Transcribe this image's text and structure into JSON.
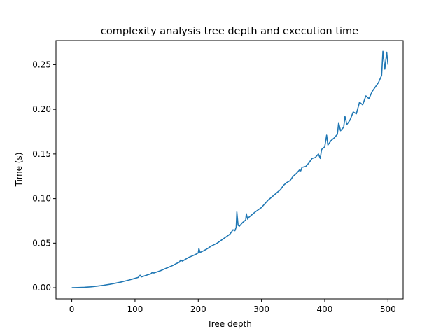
{
  "chart_data": {
    "type": "line",
    "title": "complexity analysis tree depth and execution time",
    "xlabel": "Tree depth",
    "ylabel": "Time (s)",
    "xlim": [
      -25,
      524
    ],
    "ylim": [
      -0.0125,
      0.277
    ],
    "xticks": [
      0,
      100,
      200,
      300,
      400,
      500
    ],
    "yticks": [
      0.0,
      0.05,
      0.1,
      0.15,
      0.2,
      0.25
    ],
    "xtick_labels": [
      "0",
      "100",
      "200",
      "300",
      "400",
      "500"
    ],
    "ytick_labels": [
      "0.00",
      "0.05",
      "0.10",
      "0.15",
      "0.20",
      "0.25"
    ],
    "grid": false,
    "legend": "none",
    "series": [
      {
        "color": "#1f77b4",
        "x": [
          0,
          10,
          20,
          30,
          40,
          50,
          60,
          70,
          80,
          90,
          100,
          105,
          108,
          110,
          112,
          120,
          125,
          127,
          130,
          140,
          150,
          155,
          160,
          165,
          170,
          172,
          175,
          180,
          185,
          190,
          195,
          200,
          201,
          203,
          210,
          215,
          220,
          230,
          240,
          245,
          250,
          255,
          258,
          260,
          261,
          263,
          265,
          270,
          275,
          276,
          278,
          280,
          290,
          300,
          305,
          310,
          315,
          320,
          330,
          335,
          340,
          345,
          350,
          355,
          360,
          362,
          364,
          370,
          375,
          380,
          385,
          390,
          393,
          395,
          400,
          403,
          405,
          410,
          415,
          420,
          422,
          425,
          430,
          432,
          435,
          440,
          445,
          450,
          455,
          460,
          465,
          470,
          475,
          480,
          485,
          490,
          492,
          495,
          498,
          500
        ],
        "y": [
          0.0,
          0.0002,
          0.0005,
          0.001,
          0.0018,
          0.0027,
          0.0038,
          0.0052,
          0.0067,
          0.0085,
          0.0105,
          0.0115,
          0.014,
          0.0121,
          0.0125,
          0.0145,
          0.0155,
          0.017,
          0.0165,
          0.019,
          0.022,
          0.0235,
          0.025,
          0.027,
          0.0285,
          0.031,
          0.0298,
          0.032,
          0.034,
          0.0355,
          0.037,
          0.039,
          0.044,
          0.0395,
          0.042,
          0.044,
          0.0465,
          0.05,
          0.055,
          0.0575,
          0.06,
          0.065,
          0.064,
          0.068,
          0.085,
          0.07,
          0.069,
          0.073,
          0.076,
          0.083,
          0.077,
          0.079,
          0.085,
          0.09,
          0.094,
          0.098,
          0.101,
          0.104,
          0.11,
          0.115,
          0.118,
          0.12,
          0.125,
          0.128,
          0.132,
          0.131,
          0.135,
          0.136,
          0.14,
          0.145,
          0.146,
          0.15,
          0.145,
          0.155,
          0.158,
          0.171,
          0.16,
          0.165,
          0.168,
          0.172,
          0.185,
          0.176,
          0.18,
          0.192,
          0.183,
          0.188,
          0.197,
          0.195,
          0.208,
          0.205,
          0.215,
          0.212,
          0.22,
          0.225,
          0.23,
          0.238,
          0.265,
          0.245,
          0.264,
          0.25
        ]
      }
    ]
  }
}
